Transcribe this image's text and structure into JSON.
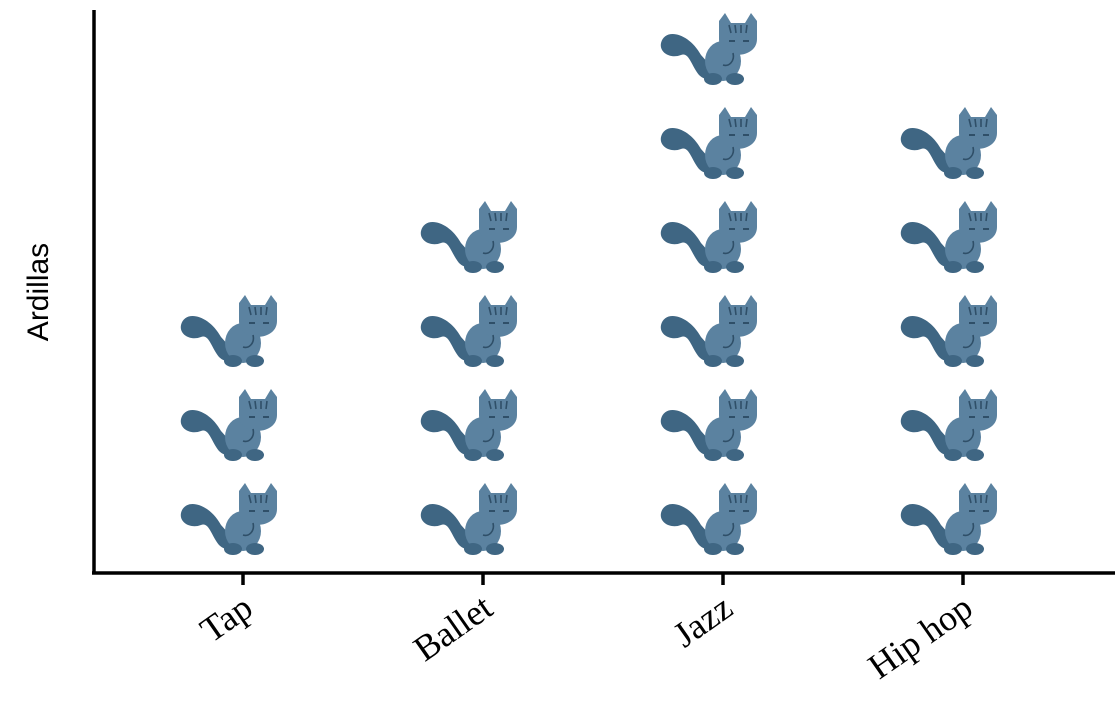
{
  "chart_data": {
    "type": "pictograph",
    "categories": [
      "Tap",
      "Ballet",
      "Jazz",
      "Hip hop"
    ],
    "values": [
      3,
      4,
      6,
      5
    ],
    "xlabel": "",
    "ylabel": "Ardillas",
    "icon": "squirrel-icon",
    "icon_color": "#5b82a0",
    "icon_dark_color": "#3f6683",
    "axis_color": "#000000",
    "grid": false
  }
}
